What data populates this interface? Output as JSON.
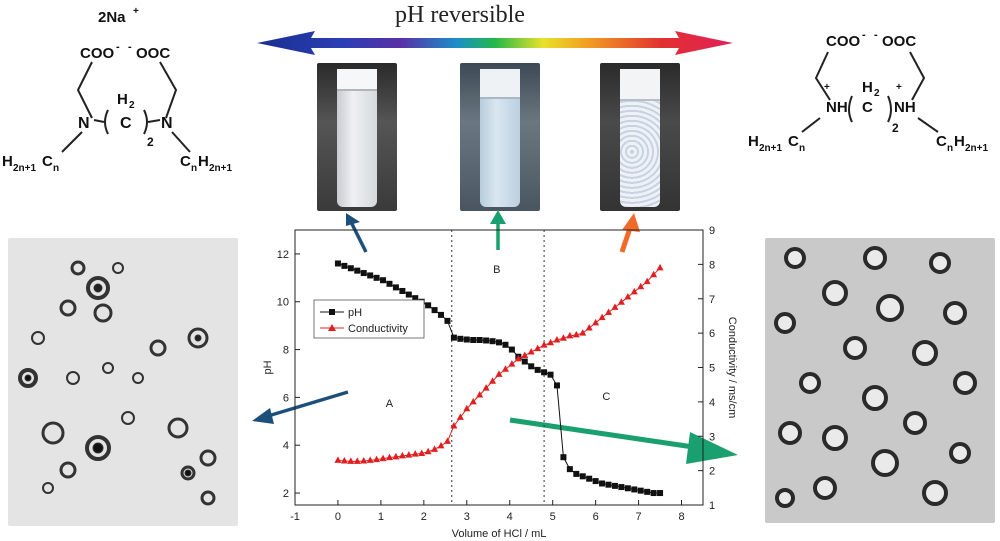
{
  "banner": {
    "title": "pH reversible"
  },
  "left_molecule": {
    "counterion": "2Na",
    "counterion_charge": "+",
    "carboxylates": "COO",
    "carboxylates_2": "OOC",
    "charge_neg": "-",
    "amine_n": "N",
    "bridge_h2": "H",
    "bridge_sub2": "2",
    "bridge_c": "C",
    "bridge_n": "2",
    "left_chain_h": "H",
    "left_chain_sub": "2n+1",
    "left_chain_c": "C",
    "left_chain_n": "n",
    "right_chain_c": "C",
    "right_chain_n": "n",
    "right_chain_h": "H",
    "right_chain_sub": "2n+1"
  },
  "right_molecule": {
    "carboxylates": "COO",
    "carboxylates_2": "OOC",
    "charge_neg": "-",
    "ammonium": "NH",
    "charge_pos": "+",
    "bridge_h2": "H",
    "bridge_sub2": "2",
    "bridge_c": "C",
    "bridge_n": "2",
    "left_chain_h": "H",
    "left_chain_sub": "2n+1",
    "left_chain_c": "C",
    "left_chain_n": "n",
    "right_chain_c": "C",
    "right_chain_n": "n",
    "right_chain_h": "H",
    "right_chain_sub": "2n+1"
  },
  "colors": {
    "arrow_blue": "#1c4f7a",
    "arrow_green": "#1aa06e",
    "arrow_orange": "#f06a2a",
    "ph_series": "#111111",
    "conductivity_series": "#e02020"
  },
  "chart_data": {
    "type": "scatter",
    "xlabel": "Volume of HCl / mL",
    "ylabel": "pH",
    "y2label": "Conductivity / ms/cm",
    "xlim": [
      -1,
      8.5
    ],
    "ylim": [
      1.5,
      13
    ],
    "y2lim": [
      1,
      9
    ],
    "x_ticks": [
      -1,
      0,
      1,
      2,
      3,
      4,
      5,
      6,
      7,
      8
    ],
    "y_ticks": [
      2,
      4,
      6,
      8,
      10,
      12
    ],
    "y2_ticks": [
      1,
      2,
      3,
      4,
      5,
      6,
      7,
      8,
      9
    ],
    "grid": false,
    "legend_position": "upper-left",
    "region_lines_x": [
      2.65,
      4.8
    ],
    "region_labels": [
      {
        "text": "A",
        "x": 1.2,
        "y": 5.6
      },
      {
        "text": "B",
        "x": 3.7,
        "y": 11.2
      },
      {
        "text": "C",
        "x": 6.25,
        "y": 5.9
      }
    ],
    "series": [
      {
        "name": "pH",
        "axis": "left",
        "marker": "square",
        "x": [
          0,
          0.15,
          0.3,
          0.45,
          0.6,
          0.75,
          0.9,
          1.05,
          1.2,
          1.35,
          1.5,
          1.65,
          1.8,
          1.95,
          2.1,
          2.25,
          2.4,
          2.55,
          2.7,
          2.85,
          3.0,
          3.15,
          3.3,
          3.45,
          3.6,
          3.75,
          3.9,
          4.05,
          4.2,
          4.35,
          4.5,
          4.65,
          4.8,
          4.95,
          5.1,
          5.25,
          5.4,
          5.55,
          5.7,
          5.85,
          6.0,
          6.15,
          6.3,
          6.45,
          6.6,
          6.75,
          6.9,
          7.05,
          7.2,
          7.35,
          7.5
        ],
        "y": [
          11.6,
          11.5,
          11.4,
          11.3,
          11.2,
          11.1,
          11.0,
          10.9,
          10.75,
          10.6,
          10.45,
          10.3,
          10.15,
          10.0,
          9.85,
          9.65,
          9.45,
          9.2,
          8.5,
          8.45,
          8.42,
          8.4,
          8.4,
          8.38,
          8.35,
          8.3,
          8.2,
          8.0,
          7.7,
          7.5,
          7.3,
          7.15,
          7.05,
          6.95,
          6.5,
          3.5,
          3.0,
          2.8,
          2.7,
          2.6,
          2.5,
          2.4,
          2.35,
          2.3,
          2.25,
          2.2,
          2.15,
          2.1,
          2.05,
          2.0,
          2.0
        ]
      },
      {
        "name": "Conductivity",
        "axis": "right",
        "marker": "triangle",
        "x": [
          0,
          0.15,
          0.3,
          0.45,
          0.6,
          0.75,
          0.9,
          1.05,
          1.2,
          1.35,
          1.5,
          1.65,
          1.8,
          1.95,
          2.1,
          2.25,
          2.4,
          2.55,
          2.7,
          2.85,
          3.0,
          3.15,
          3.3,
          3.45,
          3.6,
          3.75,
          3.9,
          4.05,
          4.2,
          4.35,
          4.5,
          4.65,
          4.8,
          4.95,
          5.1,
          5.25,
          5.4,
          5.55,
          5.7,
          5.85,
          6.0,
          6.15,
          6.3,
          6.45,
          6.6,
          6.75,
          6.9,
          7.05,
          7.2,
          7.35,
          7.5
        ],
        "y": [
          2.3,
          2.28,
          2.27,
          2.27,
          2.28,
          2.3,
          2.32,
          2.35,
          2.38,
          2.4,
          2.43,
          2.45,
          2.48,
          2.5,
          2.55,
          2.62,
          2.72,
          2.85,
          3.3,
          3.55,
          3.8,
          4.0,
          4.2,
          4.4,
          4.6,
          4.8,
          4.95,
          5.1,
          5.25,
          5.35,
          5.45,
          5.55,
          5.65,
          5.72,
          5.8,
          5.85,
          5.92,
          5.95,
          6.0,
          6.15,
          6.3,
          6.45,
          6.6,
          6.75,
          6.9,
          7.05,
          7.2,
          7.35,
          7.5,
          7.7,
          7.9
        ]
      }
    ]
  }
}
